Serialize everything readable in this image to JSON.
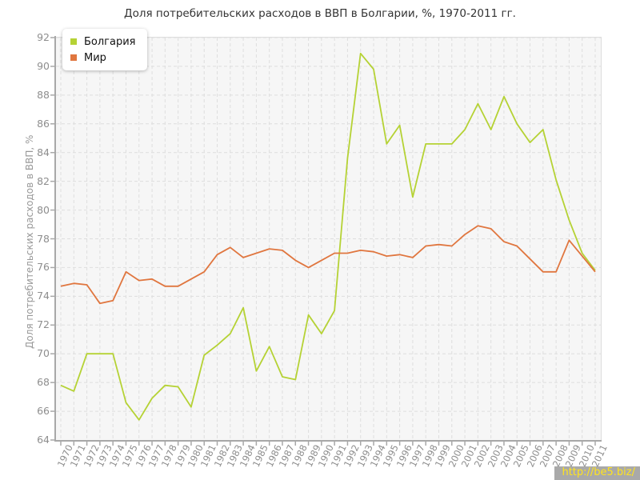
{
  "title": "Доля потребительских расходов в ВВП в Болгарии, %, 1970-2011 гг.",
  "watermark": "http://be5.biz/",
  "legend": {
    "items": [
      {
        "label": "Болгария",
        "color": "#b5d234"
      },
      {
        "label": "Мир",
        "color": "#e0763f"
      }
    ]
  },
  "chart_data": {
    "type": "line",
    "title": "Доля потребительских расходов в ВВП в Болгарии, %, 1970-2011 гг.",
    "xlabel": "",
    "ylabel": "Доля потребительских расходов в ВВП, %",
    "ylim": [
      64,
      92
    ],
    "ytick_step": 2,
    "grid": true,
    "grid_style": "dashed",
    "legend_position": "top-left",
    "x": [
      1970,
      1971,
      1972,
      1973,
      1974,
      1975,
      1976,
      1977,
      1978,
      1979,
      1980,
      1981,
      1982,
      1983,
      1984,
      1985,
      1986,
      1987,
      1988,
      1989,
      1990,
      1991,
      1992,
      1993,
      1994,
      1995,
      1996,
      1997,
      1998,
      1999,
      2000,
      2001,
      2002,
      2003,
      2004,
      2005,
      2006,
      2007,
      2008,
      2009,
      2010,
      2011
    ],
    "series": [
      {
        "name": "Болгария",
        "color": "#b5d234",
        "values": [
          67.8,
          67.4,
          70.0,
          70.0,
          70.0,
          66.6,
          65.4,
          66.9,
          67.8,
          67.7,
          66.3,
          69.9,
          70.6,
          71.4,
          73.2,
          68.8,
          70.5,
          68.4,
          68.2,
          72.7,
          71.4,
          73.0,
          83.6,
          90.9,
          89.8,
          84.6,
          85.9,
          80.9,
          84.6,
          84.6,
          84.6,
          85.6,
          87.4,
          85.6,
          87.9,
          86.0,
          84.7,
          85.6,
          82.1,
          79.3,
          77.0,
          75.8
        ]
      },
      {
        "name": "Мир",
        "color": "#e0763f",
        "values": [
          74.7,
          74.9,
          74.8,
          73.5,
          73.7,
          75.7,
          75.1,
          75.2,
          74.7,
          74.7,
          75.2,
          75.7,
          76.9,
          77.4,
          76.7,
          77.0,
          77.3,
          77.2,
          76.5,
          76.0,
          76.5,
          77.0,
          77.0,
          77.2,
          77.1,
          76.8,
          76.9,
          76.7,
          77.5,
          77.6,
          77.5,
          78.3,
          78.9,
          78.7,
          77.8,
          77.5,
          76.6,
          75.7,
          75.7,
          77.9,
          76.8,
          75.7
        ]
      }
    ]
  },
  "colors": {
    "plot_background": "#f6f6f6",
    "gridline": "#dedede",
    "axis": "#a8a8a8",
    "tick_label": "#8e8e8e",
    "title_text": "#333333",
    "watermark_bg": "#a9a9a9",
    "watermark_text": "#ffe41e"
  }
}
